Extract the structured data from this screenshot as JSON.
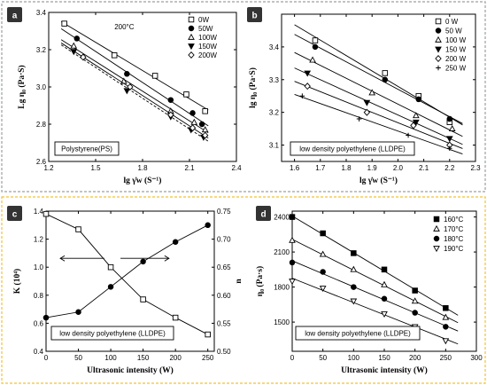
{
  "chart_data": [
    {
      "panel": "a",
      "type": "line",
      "xlabel": "lg γ̇w (S⁻¹)",
      "ylabel": "Lg η₀ (Pa·S)",
      "xlim": [
        1.2,
        2.4
      ],
      "ylim": [
        2.6,
        3.4
      ],
      "xticks": [
        1.2,
        1.5,
        1.8,
        2.1,
        2.4
      ],
      "yticks": [
        2.6,
        2.8,
        3.0,
        3.2,
        3.4
      ],
      "annotation": "200°C",
      "label_box": "Polystyrene(PS)",
      "legend_position": "top-right",
      "series": [
        {
          "name": "0W",
          "marker": "square-open",
          "line": "solid",
          "x": [
            1.3,
            1.62,
            1.88,
            2.08,
            2.2
          ],
          "y": [
            3.34,
            3.17,
            3.06,
            2.96,
            2.87
          ]
        },
        {
          "name": "50W",
          "marker": "circle-filled",
          "line": "solid",
          "x": [
            1.38,
            1.7,
            1.98,
            2.12,
            2.18
          ],
          "y": [
            3.26,
            3.07,
            2.93,
            2.86,
            2.8
          ]
        },
        {
          "name": "100W",
          "marker": "triangle-open",
          "line": "solid",
          "x": [
            1.36,
            1.68,
            1.98,
            2.13,
            2.2
          ],
          "y": [
            3.22,
            3.03,
            2.87,
            2.81,
            2.77
          ]
        },
        {
          "name": "150W",
          "marker": "triangle-down-filled",
          "line": "dashed",
          "x": [
            1.36,
            1.7,
            1.98,
            2.11,
            2.19
          ],
          "y": [
            3.19,
            2.98,
            2.84,
            2.77,
            2.73
          ]
        },
        {
          "name": "200W",
          "marker": "diamond-open",
          "line": "solid",
          "x": [
            1.42,
            1.72,
            1.98,
            2.12,
            2.2
          ],
          "y": [
            3.16,
            3.0,
            2.85,
            2.78,
            2.74
          ]
        }
      ]
    },
    {
      "panel": "b",
      "type": "line",
      "xlabel": "lg γ̇w (S⁻¹)",
      "ylabel": "lg η₀ (Pa·S)",
      "xlim": [
        1.55,
        2.3
      ],
      "ylim": [
        3.05,
        3.5
      ],
      "xticks": [
        1.6,
        1.7,
        1.8,
        1.9,
        2.0,
        2.1,
        2.2,
        2.3
      ],
      "yticks": [
        3.1,
        3.2,
        3.3,
        3.4
      ],
      "label_box": "low density polyethylene (LLDPE)",
      "legend_position": "top-right",
      "series": [
        {
          "name": "0 W",
          "marker": "square-open",
          "x": [
            1.68,
            1.95,
            2.08,
            2.2
          ],
          "y": [
            3.42,
            3.32,
            3.25,
            3.17
          ]
        },
        {
          "name": "50 W",
          "marker": "circle-filled",
          "x": [
            1.68,
            1.95,
            2.08,
            2.2
          ],
          "y": [
            3.4,
            3.3,
            3.24,
            3.18
          ]
        },
        {
          "name": "100 W",
          "marker": "triangle-open",
          "x": [
            1.67,
            1.9,
            2.07,
            2.21
          ],
          "y": [
            3.36,
            3.26,
            3.19,
            3.15
          ]
        },
        {
          "name": "150 W",
          "marker": "triangle-down-filled",
          "x": [
            1.65,
            1.88,
            2.07,
            2.2
          ],
          "y": [
            3.32,
            3.23,
            3.17,
            3.12
          ]
        },
        {
          "name": "200 W",
          "marker": "diamond-open",
          "x": [
            1.65,
            1.88,
            2.06,
            2.2
          ],
          "y": [
            3.28,
            3.2,
            3.16,
            3.1
          ]
        },
        {
          "name": "250 W",
          "marker": "plus",
          "x": [
            1.63,
            1.85,
            2.04,
            2.2
          ],
          "y": [
            3.25,
            3.18,
            3.13,
            3.09
          ]
        }
      ]
    },
    {
      "panel": "c",
      "type": "line",
      "xlabel": "Ultrasonic intensity (W)",
      "ylabel": "K (10⁴)",
      "y2label": "n",
      "xlim": [
        0,
        260
      ],
      "ylim": [
        0.4,
        1.4
      ],
      "y2lim": [
        0.5,
        0.75
      ],
      "xticks": [
        0,
        50,
        100,
        150,
        200,
        250
      ],
      "yticks": [
        0.4,
        0.6,
        0.8,
        1.0,
        1.2,
        1.4
      ],
      "y2ticks": [
        0.5,
        0.55,
        0.6,
        0.65,
        0.7,
        0.75
      ],
      "label_box": "low density polyethylene (LLDPE)",
      "series": [
        {
          "name": "K",
          "axis": "left",
          "marker": "square-open",
          "x": [
            0,
            50,
            100,
            150,
            200,
            250
          ],
          "y": [
            1.38,
            1.27,
            1.0,
            0.77,
            0.64,
            0.52
          ]
        },
        {
          "name": "n",
          "axis": "right",
          "marker": "circle-filled",
          "x": [
            0,
            50,
            100,
            150,
            200,
            250
          ],
          "y": [
            0.56,
            0.57,
            0.615,
            0.66,
            0.695,
            0.725
          ]
        }
      ]
    },
    {
      "panel": "d",
      "type": "line",
      "xlabel": "Ultrasonic intensity (W)",
      "ylabel": "η₀ (Pa·s)",
      "xlim": [
        0,
        300
      ],
      "ylim": [
        1250,
        2450
      ],
      "xticks": [
        0,
        50,
        100,
        150,
        200,
        250,
        300
      ],
      "yticks": [
        1500,
        1800,
        2100,
        2400
      ],
      "label_box": "low density polyethylene (LLDPE)",
      "legend_position": "top-right",
      "series": [
        {
          "name": "160°C",
          "marker": "square-filled",
          "x": [
            0,
            50,
            100,
            150,
            200,
            250
          ],
          "y": [
            2400,
            2260,
            2090,
            1950,
            1770,
            1620
          ]
        },
        {
          "name": "170°C",
          "marker": "triangle-open",
          "x": [
            0,
            50,
            100,
            150,
            200,
            250
          ],
          "y": [
            2200,
            2080,
            1950,
            1820,
            1680,
            1540
          ]
        },
        {
          "name": "180°C",
          "marker": "circle-filled",
          "x": [
            0,
            50,
            100,
            150,
            200,
            250
          ],
          "y": [
            2010,
            1930,
            1800,
            1700,
            1580,
            1460
          ]
        },
        {
          "name": "190°C",
          "marker": "triangle-down-open",
          "x": [
            0,
            50,
            100,
            150,
            200,
            250
          ],
          "y": [
            1850,
            1790,
            1680,
            1570,
            1460,
            1340
          ]
        }
      ]
    }
  ],
  "style": {
    "top_border": "#9aa0a6",
    "bottom_border": "#f2c232",
    "panel_label_bg": "#333333"
  }
}
